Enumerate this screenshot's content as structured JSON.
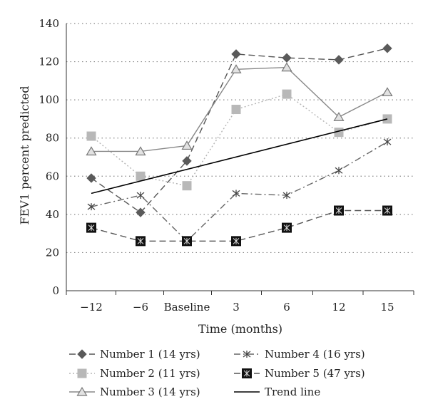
{
  "chart_data": {
    "type": "line",
    "title": "",
    "xlabel": "Time (months)",
    "ylabel": "FEV1 percent predicted",
    "categories": [
      "−12",
      "−6",
      "Baseline",
      "3",
      "6",
      "12",
      "15"
    ],
    "ylim": [
      0,
      140
    ],
    "yticks": [
      0,
      20,
      40,
      60,
      80,
      100,
      120,
      140
    ],
    "grid": "horizontal-dotted",
    "legend_position": "bottom",
    "series": [
      {
        "name": "Number 1 (14 yrs)",
        "values": [
          59,
          41,
          68,
          124,
          122,
          121,
          127
        ],
        "color": "#555555",
        "marker": "diamond",
        "dash": "dashed"
      },
      {
        "name": "Number 2 (11 yrs)",
        "values": [
          81,
          60,
          55,
          95,
          103,
          83,
          90
        ],
        "color": "#b5b5b5",
        "marker": "square",
        "dash": "dotted"
      },
      {
        "name": "Number 3 (14 yrs)",
        "values": [
          73,
          73,
          76,
          116,
          117,
          91,
          104
        ],
        "color": "#888888",
        "marker": "triangle",
        "dash": "solid"
      },
      {
        "name": "Number 4 (16 yrs)",
        "values": [
          44,
          50,
          26,
          51,
          50,
          63,
          78
        ],
        "color": "#666666",
        "marker": "star",
        "dash": "dashdot"
      },
      {
        "name": "Number 5 (47 yrs)",
        "values": [
          33,
          26,
          26,
          26,
          33,
          42,
          42
        ],
        "color": "#555555",
        "marker": "blacksquare",
        "dash": "dashed"
      },
      {
        "name": "Trend line",
        "values": [
          51,
          null,
          null,
          null,
          null,
          null,
          90
        ],
        "color": "#000000",
        "marker": "none",
        "dash": "solid",
        "trend": true
      }
    ]
  }
}
